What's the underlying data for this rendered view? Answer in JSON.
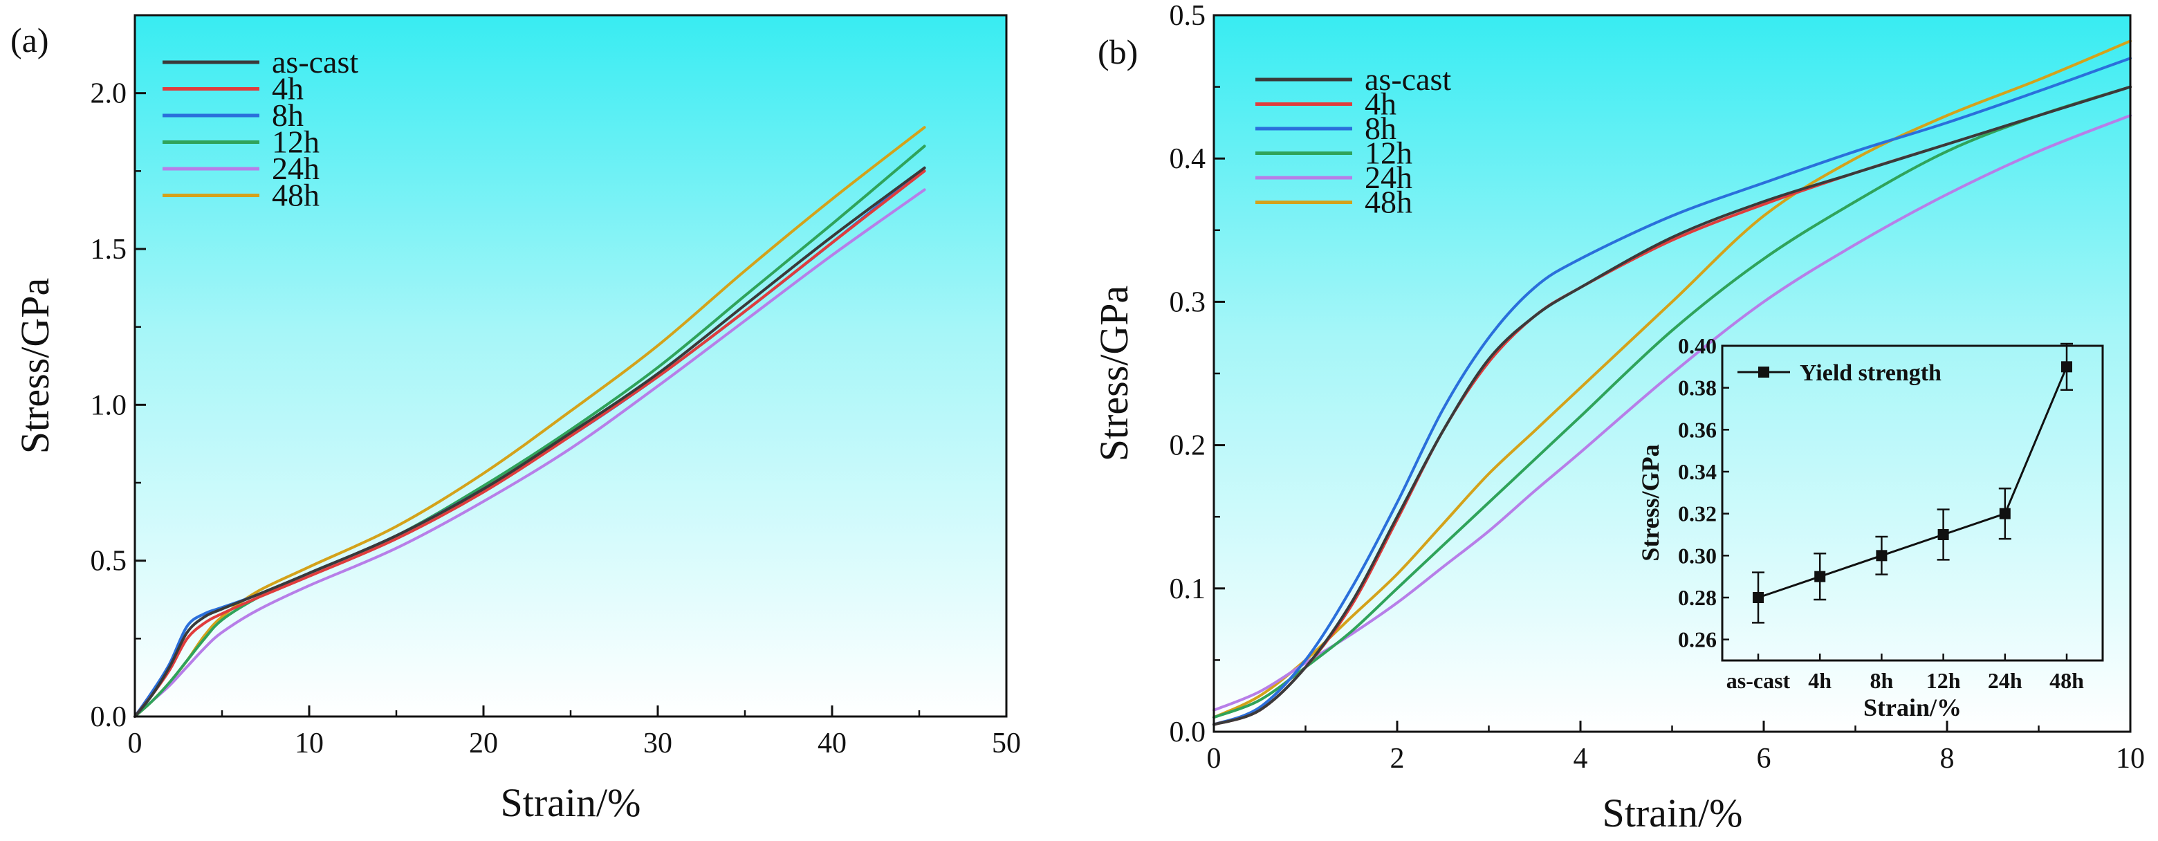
{
  "chart_data": [
    {
      "id": "a",
      "panel_label": "(a)",
      "type": "line",
      "title": "",
      "xlabel": "Strain/%",
      "ylabel": "Stress/GPa",
      "xlim": [
        0,
        50
      ],
      "ylim": [
        0,
        2.25
      ],
      "xticks": [
        0,
        10,
        20,
        30,
        40,
        50
      ],
      "xtick_labels": [
        "0",
        "10",
        "20",
        "30",
        "40",
        "50"
      ],
      "yticks": [
        0,
        0.5,
        1.0,
        1.5,
        2.0
      ],
      "ytick_labels": [
        "0.0",
        "0.5",
        "1.0",
        "1.5",
        "2.0"
      ],
      "legend_position": "top-left",
      "background": "cyan-to-white vertical gradient",
      "series": [
        {
          "name": "as-cast",
          "color": "#3a3a3a",
          "x": [
            0,
            1,
            2,
            3,
            4,
            5,
            7,
            10,
            15,
            20,
            25,
            30,
            35,
            40,
            45.3
          ],
          "y": [
            0,
            0.07,
            0.16,
            0.27,
            0.32,
            0.345,
            0.39,
            0.46,
            0.58,
            0.73,
            0.91,
            1.1,
            1.32,
            1.54,
            1.76
          ]
        },
        {
          "name": "4h",
          "color": "#e03c3c",
          "x": [
            0,
            1,
            2,
            3,
            4,
            5,
            7,
            10,
            15,
            20,
            25,
            30,
            35,
            40,
            45.3
          ],
          "y": [
            0,
            0.07,
            0.15,
            0.25,
            0.3,
            0.33,
            0.38,
            0.45,
            0.57,
            0.72,
            0.9,
            1.09,
            1.3,
            1.52,
            1.75
          ]
        },
        {
          "name": "8h",
          "color": "#2a6fdb",
          "x": [
            0,
            1,
            2,
            3,
            4,
            5,
            7,
            10,
            15,
            20,
            25,
            30,
            35,
            40,
            45.3
          ],
          "y": [
            0,
            0.08,
            0.17,
            0.29,
            0.33,
            0.35,
            0.39,
            0.46,
            0.58,
            0.73,
            0.9,
            1.09,
            1.3,
            1.52,
            1.76
          ]
        },
        {
          "name": "12h",
          "color": "#2fa35a",
          "x": [
            0,
            1,
            2,
            3,
            4,
            5,
            7,
            10,
            15,
            20,
            25,
            30,
            35,
            40,
            45.3
          ],
          "y": [
            0,
            0.05,
            0.11,
            0.18,
            0.25,
            0.31,
            0.38,
            0.46,
            0.58,
            0.74,
            0.92,
            1.12,
            1.35,
            1.58,
            1.83
          ]
        },
        {
          "name": "24h",
          "color": "#b77ee8",
          "x": [
            0,
            1,
            2,
            3,
            4,
            5,
            7,
            10,
            15,
            20,
            25,
            30,
            35,
            40,
            45.3
          ],
          "y": [
            0,
            0.05,
            0.1,
            0.16,
            0.22,
            0.27,
            0.34,
            0.42,
            0.54,
            0.69,
            0.86,
            1.06,
            1.27,
            1.48,
            1.69
          ]
        },
        {
          "name": "48h",
          "color": "#d4a21a",
          "x": [
            0,
            1,
            2,
            3,
            4,
            5,
            7,
            10,
            15,
            20,
            25,
            30,
            35,
            40,
            45.3
          ],
          "y": [
            0,
            0.05,
            0.11,
            0.18,
            0.26,
            0.32,
            0.4,
            0.48,
            0.61,
            0.78,
            0.98,
            1.19,
            1.43,
            1.66,
            1.89
          ]
        }
      ]
    },
    {
      "id": "b",
      "panel_label": "(b)",
      "type": "line",
      "title": "",
      "xlabel": "Strain/%",
      "ylabel": "Stress/GPa",
      "xlim": [
        0,
        10
      ],
      "ylim": [
        0,
        0.5
      ],
      "xticks": [
        0,
        2,
        4,
        6,
        8,
        10
      ],
      "xtick_labels": [
        "0",
        "2",
        "4",
        "6",
        "8",
        "10"
      ],
      "yticks": [
        0,
        0.1,
        0.2,
        0.3,
        0.4,
        0.5
      ],
      "ytick_labels": [
        "0.0",
        "0.1",
        "0.2",
        "0.3",
        "0.4",
        "0.5"
      ],
      "legend_position": "top-left",
      "background": "cyan-to-white vertical gradient",
      "series": [
        {
          "name": "as-cast",
          "color": "#3a3a3a",
          "x": [
            0,
            0.5,
            1,
            1.5,
            2,
            2.5,
            3,
            3.5,
            4,
            5,
            6,
            7,
            8,
            9,
            10
          ],
          "y": [
            0.005,
            0.015,
            0.045,
            0.09,
            0.15,
            0.21,
            0.26,
            0.29,
            0.31,
            0.345,
            0.37,
            0.39,
            0.41,
            0.43,
            0.45
          ]
        },
        {
          "name": "4h",
          "color": "#e03c3c",
          "x": [
            0,
            0.5,
            1,
            1.5,
            2,
            2.5,
            3,
            3.5,
            4,
            5,
            6,
            7,
            8,
            9,
            10
          ],
          "y": [
            0.005,
            0.015,
            0.045,
            0.088,
            0.148,
            0.21,
            0.258,
            0.29,
            0.31,
            0.343,
            0.368,
            0.39,
            0.41,
            0.43,
            0.45
          ]
        },
        {
          "name": "8h",
          "color": "#2a6fdb",
          "x": [
            0,
            0.5,
            1,
            1.5,
            2,
            2.5,
            3,
            3.5,
            4,
            5,
            6,
            7,
            8,
            9,
            10
          ],
          "y": [
            0.005,
            0.017,
            0.05,
            0.1,
            0.16,
            0.225,
            0.275,
            0.31,
            0.33,
            0.36,
            0.383,
            0.405,
            0.425,
            0.447,
            0.47
          ]
        },
        {
          "name": "12h",
          "color": "#2fa35a",
          "x": [
            0,
            0.5,
            1,
            1.5,
            2,
            2.5,
            3,
            3.5,
            4,
            5,
            6,
            7,
            8,
            9,
            10
          ],
          "y": [
            0.01,
            0.022,
            0.045,
            0.07,
            0.1,
            0.13,
            0.16,
            0.19,
            0.22,
            0.28,
            0.33,
            0.37,
            0.405,
            0.43,
            0.45
          ]
        },
        {
          "name": "24h",
          "color": "#b77ee8",
          "x": [
            0,
            0.5,
            1,
            1.5,
            2,
            2.5,
            3,
            3.5,
            4,
            5,
            6,
            7,
            8,
            9,
            10
          ],
          "y": [
            0.015,
            0.028,
            0.048,
            0.068,
            0.09,
            0.115,
            0.14,
            0.168,
            0.195,
            0.25,
            0.3,
            0.34,
            0.375,
            0.405,
            0.43
          ]
        },
        {
          "name": "48h",
          "color": "#d4a21a",
          "x": [
            0,
            0.5,
            1,
            1.5,
            2,
            2.5,
            3,
            3.5,
            4,
            5,
            6,
            7,
            8,
            9,
            10
          ],
          "y": [
            0.01,
            0.025,
            0.05,
            0.08,
            0.11,
            0.145,
            0.18,
            0.21,
            0.24,
            0.3,
            0.36,
            0.4,
            0.43,
            0.455,
            0.482
          ]
        }
      ],
      "inset": {
        "type": "line",
        "xlabel": "Strain/%",
        "ylabel": "Stress/GPa",
        "ylim": [
          0.25,
          0.4
        ],
        "yticks": [
          0.26,
          0.28,
          0.3,
          0.32,
          0.34,
          0.36,
          0.38,
          0.4
        ],
        "ytick_labels": [
          "0.26",
          "0.28",
          "0.30",
          "0.32",
          "0.34",
          "0.36",
          "0.38",
          "0.40"
        ],
        "categories": [
          "as-cast",
          "4h",
          "8h",
          "12h",
          "24h",
          "48h"
        ],
        "legend_position": "top-left",
        "series": [
          {
            "name": "Yield strength",
            "color": "#111111",
            "marker": "square",
            "values": [
              0.28,
              0.29,
              0.3,
              0.31,
              0.32,
              0.39
            ],
            "errors": [
              0.012,
              0.011,
              0.009,
              0.012,
              0.012,
              0.011
            ]
          }
        ]
      }
    }
  ]
}
